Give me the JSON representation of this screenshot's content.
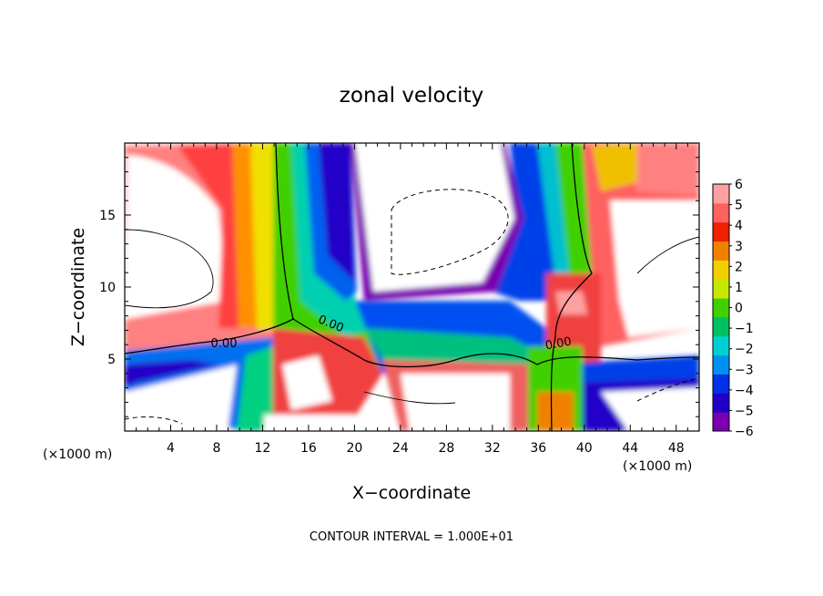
{
  "chart_data": {
    "type": "heatmap",
    "title": "zonal velocity",
    "xlabel": "X−coordinate",
    "ylabel": "Z−coordinate",
    "x_unit_label": "(×1000 m)",
    "z_unit_label": "(×1000 m)",
    "xlim": [
      0,
      50
    ],
    "ylim": [
      0,
      20
    ],
    "x_ticks": [
      "4",
      "8",
      "12",
      "16",
      "20",
      "24",
      "28",
      "32",
      "36",
      "40",
      "44",
      "48"
    ],
    "y_ticks": [
      "5",
      "10",
      "15"
    ],
    "contour_interval_text": "CONTOUR INTERVAL = 1.000E+01",
    "contour_labels": [
      "0.00",
      "0.00",
      "0.00"
    ],
    "colorbar": {
      "range": [
        -6,
        6
      ],
      "tick_labels": [
        "6",
        "5",
        "4",
        "3",
        "2",
        "1",
        "0",
        "−1",
        "−2",
        "−3",
        "−4",
        "−5",
        "−6"
      ],
      "colors": [
        "#7a00b0",
        "#2000c8",
        "#0030e8",
        "#0090f0",
        "#00d0d0",
        "#00c060",
        "#40d000",
        "#c8e800",
        "#f0d000",
        "#f08000",
        "#f02000",
        "#ff6060",
        "#ffa0a0"
      ]
    },
    "grid": false
  }
}
